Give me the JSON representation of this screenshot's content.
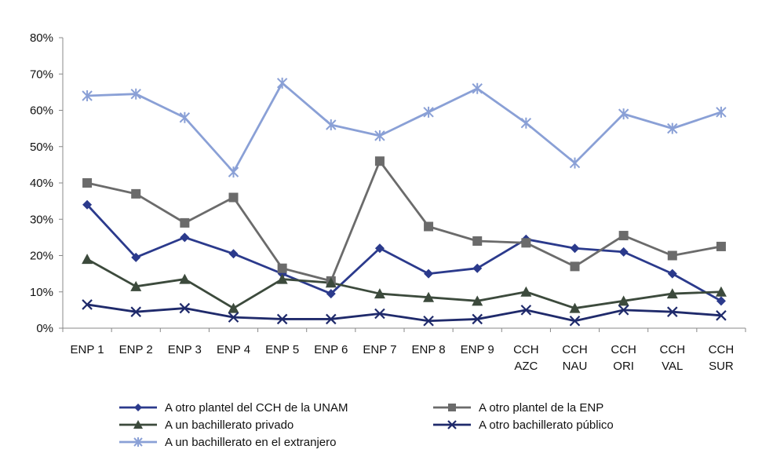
{
  "chart_data": {
    "type": "line",
    "title": "",
    "xlabel": "",
    "ylabel": "",
    "ylim": [
      0,
      80
    ],
    "y_ticks": [
      "0%",
      "10%",
      "20%",
      "30%",
      "40%",
      "50%",
      "60%",
      "70%",
      "80%"
    ],
    "grid": false,
    "legend_position": "bottom",
    "categories": [
      [
        "ENP 1"
      ],
      [
        "ENP 2"
      ],
      [
        "ENP 3"
      ],
      [
        "ENP 4"
      ],
      [
        "ENP 5"
      ],
      [
        "ENP 6"
      ],
      [
        "ENP 7"
      ],
      [
        "ENP 8"
      ],
      [
        "ENP 9"
      ],
      [
        "CCH",
        "AZC"
      ],
      [
        "CCH",
        "NAU"
      ],
      [
        "CCH",
        "ORI"
      ],
      [
        "CCH",
        "VAL"
      ],
      [
        "CCH",
        "SUR"
      ]
    ],
    "series": [
      {
        "name": "A otro plantel del CCH de la UNAM",
        "color": "#2b3a8c",
        "marker": "diamond",
        "values": [
          34,
          19.5,
          25,
          20.5,
          15,
          9.5,
          22,
          15,
          16.5,
          24.5,
          22,
          21,
          15,
          7.5
        ]
      },
      {
        "name": "A otro plantel de la ENP",
        "color": "#6b6b6b",
        "marker": "square",
        "values": [
          40,
          37,
          29,
          36,
          16.5,
          13,
          46,
          28,
          24,
          23.5,
          17,
          25.5,
          20,
          22.5
        ]
      },
      {
        "name": "A un bachillerato privado",
        "color": "#3c4a3c",
        "marker": "triangle",
        "values": [
          19,
          11.5,
          13.5,
          5.5,
          13.5,
          12.5,
          9.5,
          8.5,
          7.5,
          10,
          5.5,
          7.5,
          9.5,
          10
        ]
      },
      {
        "name": "A otro bachillerato público",
        "color": "#1f2a6b",
        "marker": "x",
        "values": [
          6.5,
          4.5,
          5.5,
          3,
          2.5,
          2.5,
          4,
          2,
          2.5,
          5,
          2,
          5,
          4.5,
          3.5
        ]
      },
      {
        "name": "A un bachillerato en el extranjero",
        "color": "#8aa0d6",
        "marker": "star",
        "values": [
          64,
          64.5,
          58,
          43,
          67.5,
          56,
          53,
          59.5,
          66,
          56.5,
          45.5,
          59,
          55,
          59.5
        ]
      }
    ]
  }
}
